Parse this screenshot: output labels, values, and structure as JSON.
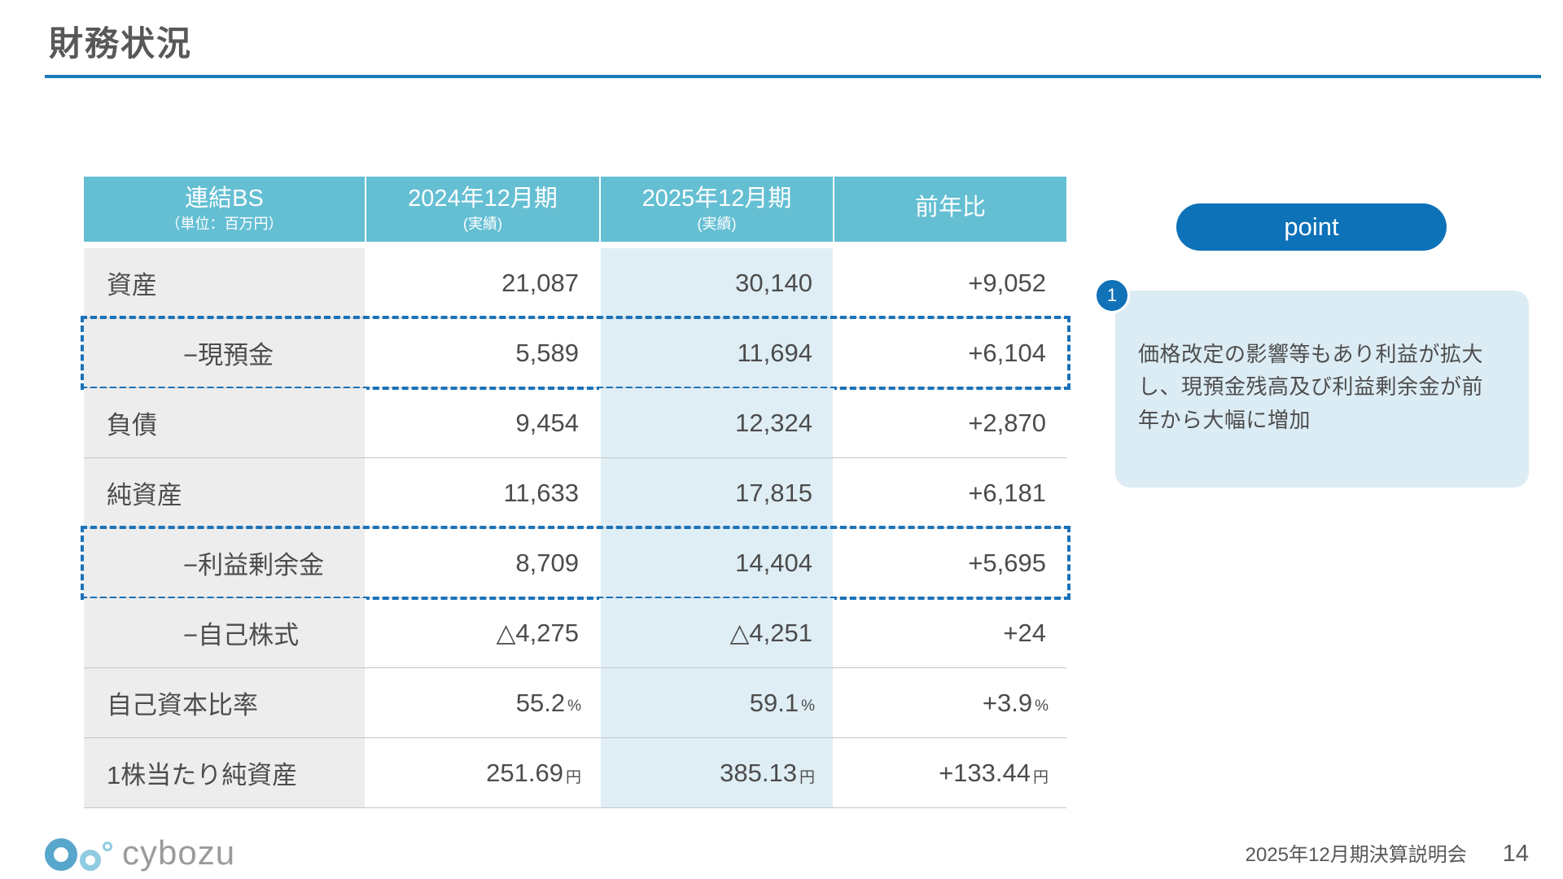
{
  "slide": {
    "title": "財務状況"
  },
  "colors": {
    "accent_blue": "#1272b8",
    "underline_blue": "#1b79b8",
    "header_teal": "#64bfd3",
    "label_column_gray": "#ededed",
    "fy2025_column_blue": "#dfeef5",
    "note_box_blue": "#dcecf4",
    "dashed_highlight_blue": "#1b72b8",
    "text_dark_gray": "#4c4c4c"
  },
  "table": {
    "columns": [
      {
        "title": "連結BS",
        "sub": "（単位：百万円）"
      },
      {
        "title": "2024年12月期",
        "sub": "(実績)"
      },
      {
        "title": "2025年12月期",
        "sub": "(実績)"
      },
      {
        "title": "前年比",
        "sub": ""
      }
    ],
    "rows": [
      {
        "label": "資産",
        "y2024": "21,087",
        "y2024_unit": "",
        "y2025": "30,140",
        "y2025_unit": "",
        "yoy": "+9,052",
        "yoy_unit": ""
      },
      {
        "label": "−現預金",
        "y2024": "5,589",
        "y2024_unit": "",
        "y2025": "11,694",
        "y2025_unit": "",
        "yoy": "+6,104",
        "yoy_unit": ""
      },
      {
        "label": "負債",
        "y2024": "9,454",
        "y2024_unit": "",
        "y2025": "12,324",
        "y2025_unit": "",
        "yoy": "+2,870",
        "yoy_unit": ""
      },
      {
        "label": "純資産",
        "y2024": "11,633",
        "y2024_unit": "",
        "y2025": "17,815",
        "y2025_unit": "",
        "yoy": "+6,181",
        "yoy_unit": ""
      },
      {
        "label": "−利益剰余金",
        "y2024": "8,709",
        "y2024_unit": "",
        "y2025": "14,404",
        "y2025_unit": "",
        "yoy": "+5,695",
        "yoy_unit": ""
      },
      {
        "label": "−自己株式",
        "y2024": "△4,275",
        "y2024_unit": "",
        "y2025": "△4,251",
        "y2025_unit": "",
        "yoy": "+24",
        "yoy_unit": ""
      },
      {
        "label": "自己資本比率",
        "y2024": "55.2",
        "y2024_unit": "%",
        "y2025": "59.1",
        "y2025_unit": "%",
        "yoy": "+3.9",
        "yoy_unit": "%"
      },
      {
        "label": "1株当たり純資産",
        "y2024": "251.69",
        "y2024_unit": "円",
        "y2025": "385.13",
        "y2025_unit": "円",
        "yoy": "+133.44",
        "yoy_unit": "円"
      }
    ]
  },
  "point": {
    "badge_label": "point",
    "marker_number": "1",
    "note": "価格改定の影響等もあり利益が拡大し、現預金残高及び利益剰余金が前年から大幅に増加"
  },
  "footer": {
    "logo_text": "cybozu",
    "event": "2025年12月期決算説明会",
    "page": "14"
  }
}
